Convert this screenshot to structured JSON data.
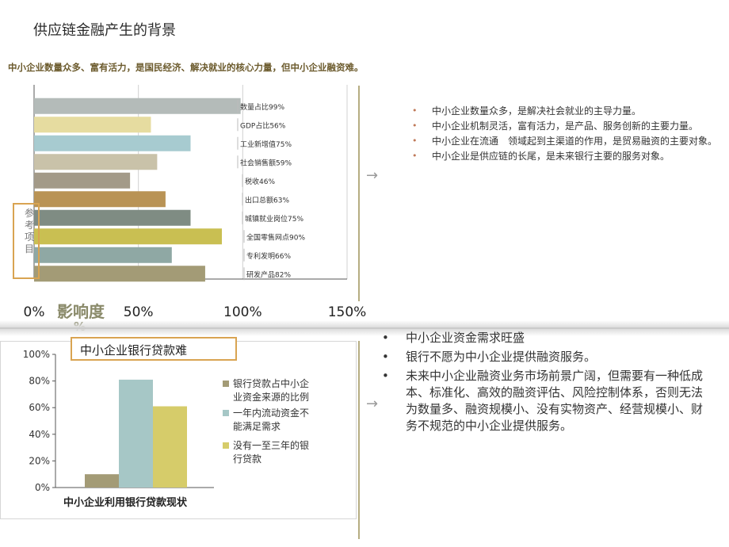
{
  "title": "供应链金融产生的背景",
  "subtitle": "中小企业数量众多、富有活力，是国民经济、解决就业的核心力量，但中小企业融资难。",
  "top_bullets": [
    "中小企业数量众多，是解决社会就业的主导力量。",
    "中小企业机制灵活，富有活力，是产品、服务创新的主要力量。",
    "中小企业在流通　领域起到主渠道的作用，是贸易融资的主要对象。",
    "中小企业是供应链的长尾，是未来银行主要的服务对象。"
  ],
  "reference_label": "参考项目",
  "impact_label": "影响度",
  "impact_suffix": "%",
  "box2_title": "中小企业银行贷款难",
  "bottom_bullets": [
    "中小企业资金需求旺盛",
    "银行不愿为中小企业提供融资服务。",
    "未来中小企业融资业务市场前景广阔，但需要有一种低成本、标准化、高效的融资评估、风险控制体系，否则无法为数量多、融资规模小、没有实物资产、经营规模小、财务不规范的中小企业提供服务。"
  ],
  "arrow_glyph": "→",
  "chart_data": [
    {
      "type": "bar",
      "orientation": "horizontal",
      "categories": [
        "数量占比99%",
        "GDP占比56%",
        "工业新增值75%",
        "社会销售额59%",
        "税收46%",
        "出口总额63%",
        "城镇就业岗位75%",
        "全国零售网点90%",
        "专利发明66%",
        "研发产品82%"
      ],
      "values": [
        99,
        56,
        75,
        59,
        46,
        63,
        75,
        90,
        66,
        82
      ],
      "colors": [
        "#b4bbb9",
        "#e6dca0",
        "#a7cbd0",
        "#c9c2a9",
        "#a39a88",
        "#b99355",
        "#7f8c83",
        "#c9bf52",
        "#8fa8a4",
        "#a39b76"
      ],
      "xlim": [
        0,
        150
      ],
      "xticks": [
        "0%",
        "50%",
        "100%",
        "150%"
      ]
    },
    {
      "type": "bar",
      "title": "中小企业利用银行贷款现状",
      "series": [
        {
          "name": "银行贷款占中小企业资金来源的比例",
          "value": 10,
          "color": "#a39b76"
        },
        {
          "name": "一年内流动资金不能满足需求",
          "value": 81,
          "color": "#a6c7c6"
        },
        {
          "name": "没有一至三年的银行贷款",
          "value": 61,
          "color": "#d6cc6a"
        }
      ],
      "ylim": [
        0,
        100
      ],
      "yticks": [
        "0%",
        "20%",
        "40%",
        "60%",
        "80%",
        "100%"
      ]
    }
  ]
}
